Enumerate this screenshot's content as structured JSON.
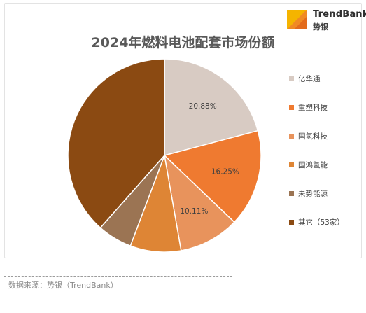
{
  "brand": {
    "name": "TrendBank",
    "name_cn": "势银",
    "logo_colors": [
      "#f5b400",
      "#f08a24",
      "#e36b1c"
    ]
  },
  "chart_data": {
    "type": "pie",
    "title": "2024年燃料电池配套市场份额",
    "slices": [
      {
        "name": "亿华通",
        "value": 20.88,
        "label": "20.88%",
        "color": "#d8cbc3"
      },
      {
        "name": "重塑科技",
        "value": 16.25,
        "label": "16.25%",
        "color": "#ef7a30"
      },
      {
        "name": "国氢科技",
        "value": 10.11,
        "label": "10.11%",
        "color": "#e8935c"
      },
      {
        "name": "国鸿氢能",
        "value": 8.5,
        "label": "",
        "color": "#de8535"
      },
      {
        "name": "未势能源",
        "value": 5.8,
        "label": "",
        "color": "#9b7453"
      },
      {
        "name": "其它（53家）",
        "value": 38.46,
        "label": "",
        "color": "#8b4a12"
      }
    ],
    "legend_position": "right"
  },
  "source_note": "数据来源：势银（TrendBank）"
}
